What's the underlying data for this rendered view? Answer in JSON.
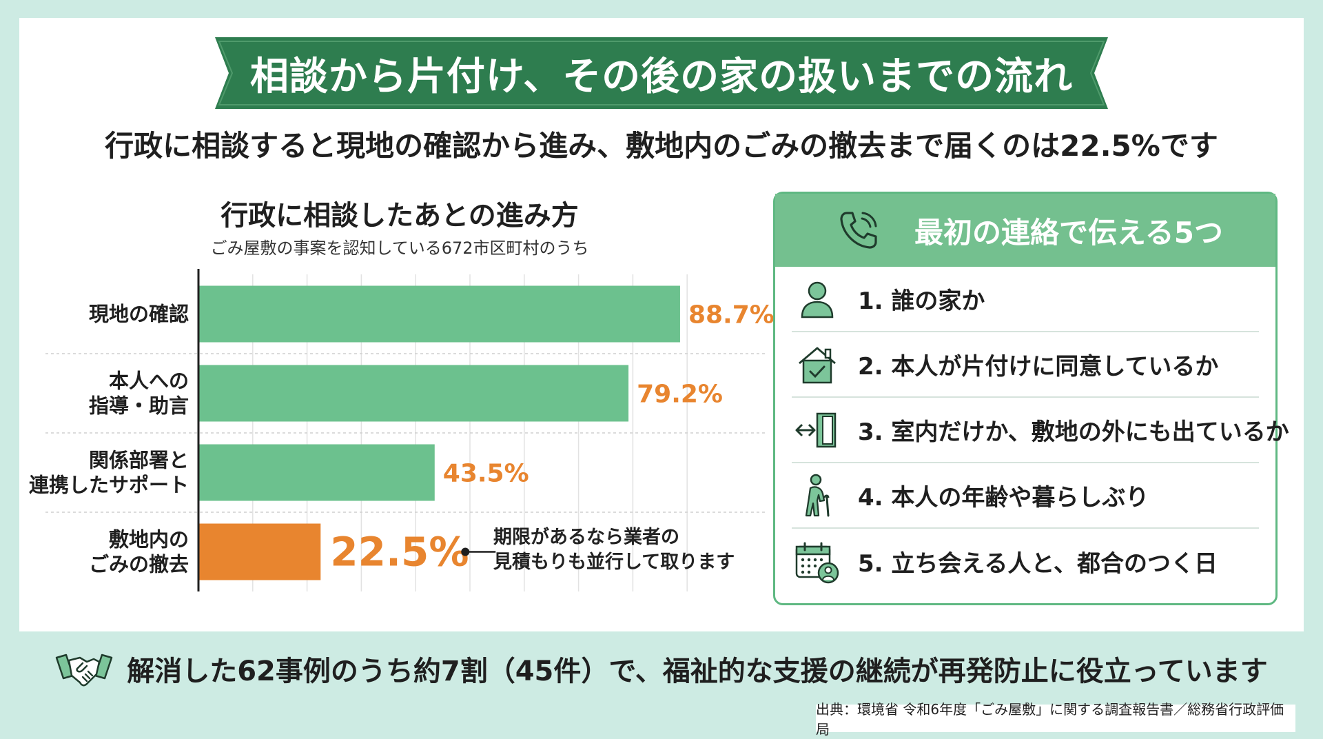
{
  "banner": {
    "title": "相談から片付け、その後の家の扱いまでの流れ"
  },
  "subtitle": "行政に相談すると現地の確認から進み、敷地内のごみの撤去まで届くのは22.5%です",
  "chart_data": {
    "type": "bar",
    "orientation": "horizontal",
    "title": "行政に相談したあとの進み方",
    "subtitle": "ごみ屋敷の事案を認知している672市区町村のうち",
    "categories": [
      [
        "現地の確認"
      ],
      [
        "本人への",
        "指導・助言"
      ],
      [
        "関係部署と",
        "連携したサポート"
      ],
      [
        "敷地内の",
        "ごみの撤去"
      ]
    ],
    "values": [
      88.7,
      79.2,
      43.5,
      22.5
    ],
    "value_labels": [
      "88.7%",
      "79.2%",
      "43.5%",
      "22.5%"
    ],
    "xlim": [
      0,
      100
    ],
    "grid": true,
    "colors": {
      "bar": "#6cc18e",
      "highlight": "#e8852f",
      "label": "#e8852f"
    },
    "highlight_index": 3,
    "annotation": [
      "期限があるなら業者の",
      "見積もりも並行して取ります"
    ]
  },
  "panel": {
    "title": "最初の連絡で伝える5つ",
    "header_icon": "phone-icon",
    "items": [
      {
        "icon": "person-icon",
        "label": "1.  誰の家か"
      },
      {
        "icon": "house-check-icon",
        "label": "2.  本人が片付けに同意しているか"
      },
      {
        "icon": "door-exit-icon",
        "label": "3.  室内だけか、敷地の外にも出ているか"
      },
      {
        "icon": "elderly-icon",
        "label": "4.  本人の年齢や暮らしぶり"
      },
      {
        "icon": "calendar-person-icon",
        "label": "5.  立ち会える人と、都合のつく日"
      }
    ]
  },
  "bottom": {
    "icon": "handshake-icon",
    "text": "解消した62事例のうち約7割（45件）で、福祉的な支援の継続が再発防止に役立っています"
  },
  "source": "出典：環境省 令和6年度「ごみ屋敷」に関する調査報告書／総務省行政評価局",
  "colors": {
    "background": "#cdebe3",
    "banner": "#2e7d4f",
    "accent_green": "#74c08f",
    "accent_orange": "#e8852f"
  }
}
